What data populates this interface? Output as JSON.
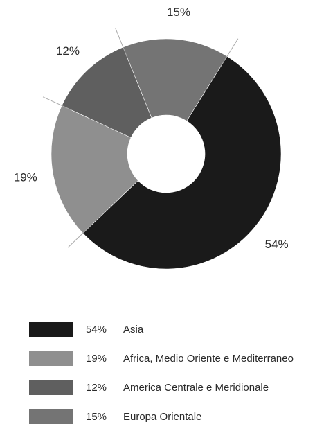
{
  "chart_data": {
    "type": "pie",
    "variant": "donut",
    "title": "",
    "slices": [
      {
        "label": "Asia",
        "value": 54,
        "display": "54%",
        "color": "#1a1a1a"
      },
      {
        "label": "Africa, Medio Oriente e Mediterraneo",
        "value": 19,
        "display": "19%",
        "color": "#8f8f8f"
      },
      {
        "label": "America Centrale e Meridionale",
        "value": 12,
        "display": "12%",
        "color": "#5f5f5f"
      },
      {
        "label": "Europa Orientale",
        "value": 15,
        "display": "15%",
        "color": "#747474"
      }
    ],
    "legend_placement": "bottom"
  },
  "legend": {
    "items": [
      {
        "percent": "54%",
        "label": "Asia",
        "color": "#1a1a1a"
      },
      {
        "percent": "19%",
        "label": "Africa, Medio Oriente e Mediterraneo",
        "color": "#8f8f8f"
      },
      {
        "percent": "12%",
        "label": "America Centrale e Meridionale",
        "color": "#5f5f5f"
      },
      {
        "percent": "15%",
        "label": "Europa Orientale",
        "color": "#747474"
      }
    ]
  }
}
